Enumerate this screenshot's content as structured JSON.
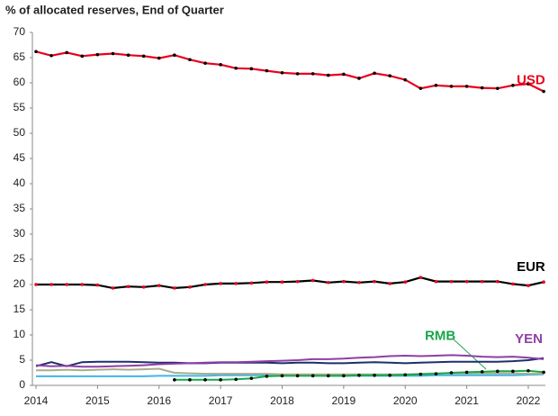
{
  "chart_data": {
    "type": "line",
    "title": "% of allocated reserves, End of Quarter",
    "x": [
      2014,
      2014.25,
      2014.5,
      2014.75,
      2015,
      2015.25,
      2015.5,
      2015.75,
      2016,
      2016.25,
      2016.5,
      2016.75,
      2017,
      2017.25,
      2017.5,
      2017.75,
      2018,
      2018.25,
      2018.5,
      2018.75,
      2019,
      2019.25,
      2019.5,
      2019.75,
      2020,
      2020.25,
      2020.5,
      2020.75,
      2021,
      2021.25,
      2021.5,
      2021.75,
      2022,
      2022.25
    ],
    "xlim": [
      2014,
      2022.3
    ],
    "xticks": [
      2014,
      2015,
      2016,
      2017,
      2018,
      2019,
      2020,
      2021,
      2022
    ],
    "ylim": [
      0,
      70
    ],
    "yticks": [
      0,
      5,
      10,
      15,
      20,
      25,
      30,
      35,
      40,
      45,
      50,
      55,
      60,
      65,
      70
    ],
    "series": [
      {
        "name": "USD",
        "color": "#e8001c",
        "marker_color": "#000000",
        "values": [
          66.2,
          65.4,
          66.0,
          65.3,
          65.6,
          65.8,
          65.5,
          65.3,
          64.9,
          65.5,
          64.6,
          63.9,
          63.6,
          62.9,
          62.8,
          62.4,
          62.0,
          61.8,
          61.8,
          61.5,
          61.7,
          60.9,
          61.9,
          61.4,
          60.6,
          58.9,
          59.5,
          59.3,
          59.3,
          59.0,
          58.9,
          59.5,
          59.8,
          58.3
        ]
      },
      {
        "name": "EUR",
        "color": "#000000",
        "marker_color": "#e8001c",
        "values": [
          20.0,
          20.0,
          20.0,
          20.0,
          19.9,
          19.3,
          19.6,
          19.5,
          19.8,
          19.3,
          19.5,
          20.0,
          20.2,
          20.2,
          20.3,
          20.5,
          20.5,
          20.6,
          20.8,
          20.4,
          20.6,
          20.4,
          20.6,
          20.2,
          20.5,
          21.4,
          20.6,
          20.6,
          20.6,
          20.6,
          20.6,
          20.1,
          19.8,
          20.5
        ]
      },
      {
        "color": "#1f2f6b",
        "values": [
          3.8,
          4.6,
          3.8,
          4.6,
          4.7,
          4.7,
          4.7,
          4.6,
          4.5,
          4.5,
          4.4,
          4.4,
          4.5,
          4.5,
          4.5,
          4.5,
          4.4,
          4.5,
          4.5,
          4.4,
          4.4,
          4.5,
          4.6,
          4.5,
          4.4,
          4.5,
          4.6,
          4.7,
          4.7,
          4.7,
          4.7,
          4.8,
          5.0,
          5.4
        ]
      },
      {
        "name": "YEN",
        "color": "#8e3fa6",
        "values": [
          4.0,
          3.8,
          3.9,
          3.7,
          3.7,
          3.8,
          3.9,
          4.0,
          4.2,
          4.3,
          4.4,
          4.5,
          4.6,
          4.6,
          4.7,
          4.8,
          4.9,
          5.0,
          5.2,
          5.2,
          5.3,
          5.5,
          5.6,
          5.8,
          5.9,
          5.8,
          5.9,
          6.0,
          5.9,
          5.7,
          5.6,
          5.7,
          5.5,
          5.2
        ]
      },
      {
        "color": "#a9ad8c",
        "values": [
          3.0,
          3.0,
          3.1,
          3.0,
          3.1,
          3.2,
          3.1,
          3.2,
          3.3,
          2.5,
          2.4,
          2.3,
          2.3,
          2.3,
          2.3,
          2.3,
          2.2,
          2.2,
          2.2,
          2.2,
          2.2,
          2.2,
          2.2,
          2.2,
          2.2,
          2.3,
          2.4,
          2.4,
          2.4,
          2.4,
          2.4,
          2.4,
          2.3,
          2.3
        ]
      },
      {
        "color": "#3fb6e8",
        "values": [
          1.8,
          1.8,
          1.8,
          1.8,
          1.8,
          1.8,
          1.8,
          1.8,
          1.9,
          1.9,
          1.9,
          1.9,
          2.0,
          2.0,
          2.0,
          2.0,
          2.0,
          2.0,
          2.0,
          1.9,
          1.9,
          1.9,
          1.9,
          1.9,
          1.9,
          1.9,
          2.0,
          2.0,
          2.0,
          2.0,
          2.0,
          2.0,
          2.1,
          2.2
        ]
      },
      {
        "name": "RMB",
        "color": "#1aa64a",
        "marker_color": "#000000",
        "values": [
          null,
          null,
          null,
          null,
          null,
          null,
          null,
          null,
          null,
          1.1,
          1.1,
          1.1,
          1.1,
          1.2,
          1.4,
          1.8,
          1.9,
          1.9,
          1.9,
          1.9,
          1.9,
          2.0,
          2.0,
          2.0,
          2.1,
          2.2,
          2.3,
          2.5,
          2.6,
          2.7,
          2.8,
          2.8,
          2.9,
          2.6
        ]
      }
    ]
  }
}
